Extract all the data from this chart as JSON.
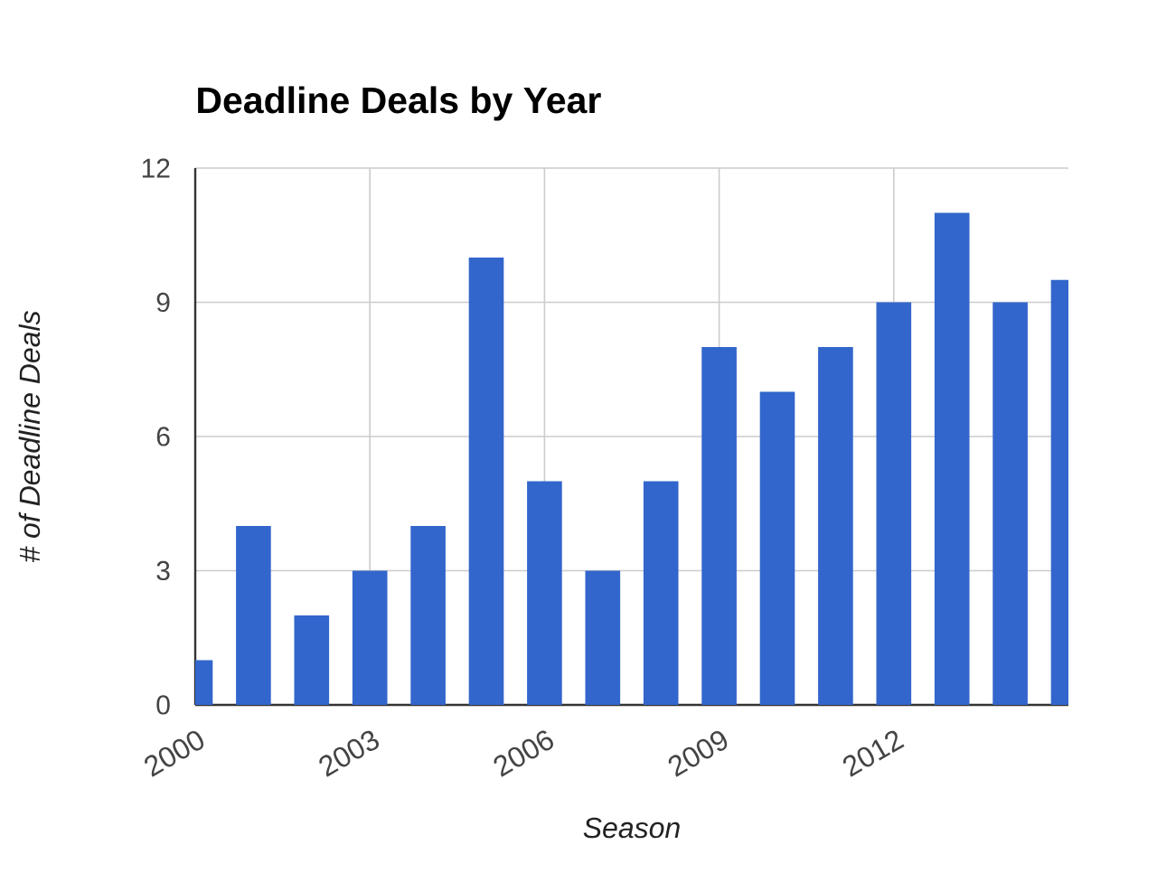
{
  "chart_data": {
    "type": "bar",
    "title": "Deadline Deals by Year",
    "xlabel": "Season",
    "ylabel": "# of Deadline Deals",
    "x": [
      2000,
      2001,
      2002,
      2003,
      2004,
      2005,
      2006,
      2007,
      2008,
      2009,
      2010,
      2011,
      2012,
      2013,
      2014,
      2015
    ],
    "values": [
      1,
      4,
      2,
      3,
      4,
      10,
      5,
      3,
      5,
      8,
      7,
      8,
      9,
      11,
      9,
      9.5
    ],
    "color": "#3366cc",
    "xlim": [
      2000,
      2015
    ],
    "xticks": [
      2000,
      2003,
      2006,
      2009,
      2012
    ],
    "ylim": [
      0,
      12
    ],
    "yticks": [
      0,
      3,
      6,
      9,
      12
    ],
    "grid": true
  }
}
